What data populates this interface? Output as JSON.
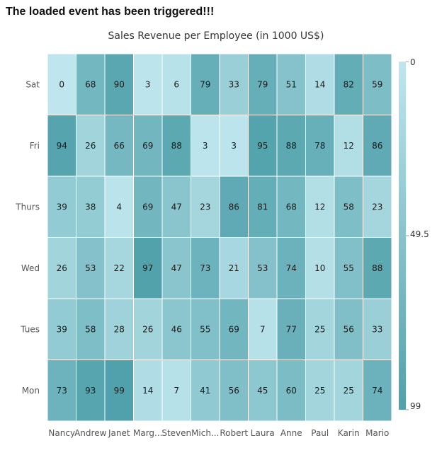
{
  "event_message": "The loaded event has been triggered!!!",
  "chart_data": {
    "type": "heatmap",
    "title": "Sales Revenue per Employee (in 1000 US$)",
    "x_categories": [
      "Nancy",
      "Andrew",
      "Janet",
      "Marg...",
      "Steven",
      "Mich...",
      "Robert",
      "Laura",
      "Anne",
      "Paul",
      "Karin",
      "Mario"
    ],
    "y_categories": [
      "Sat",
      "Fri",
      "Thurs",
      "Wed",
      "Tues",
      "Mon"
    ],
    "values": [
      [
        0,
        68,
        90,
        3,
        6,
        79,
        33,
        79,
        51,
        14,
        82,
        59
      ],
      [
        94,
        26,
        66,
        69,
        88,
        3,
        3,
        95,
        88,
        78,
        12,
        86
      ],
      [
        39,
        38,
        4,
        69,
        47,
        23,
        86,
        81,
        68,
        12,
        58,
        23
      ],
      [
        26,
        53,
        22,
        97,
        47,
        73,
        21,
        53,
        74,
        10,
        55,
        88
      ],
      [
        39,
        58,
        28,
        26,
        46,
        55,
        69,
        7,
        77,
        25,
        56,
        33
      ],
      [
        73,
        93,
        99,
        14,
        7,
        41,
        56,
        45,
        60,
        25,
        25,
        74
      ]
    ],
    "color_range": {
      "min": 0,
      "mid": 49.5,
      "max": 99
    },
    "legend": {
      "labels": [
        "0",
        "49.5",
        "99"
      ],
      "position": "right"
    },
    "colors": {
      "low": "#bfe6ee",
      "high": "#50a1ab"
    }
  }
}
